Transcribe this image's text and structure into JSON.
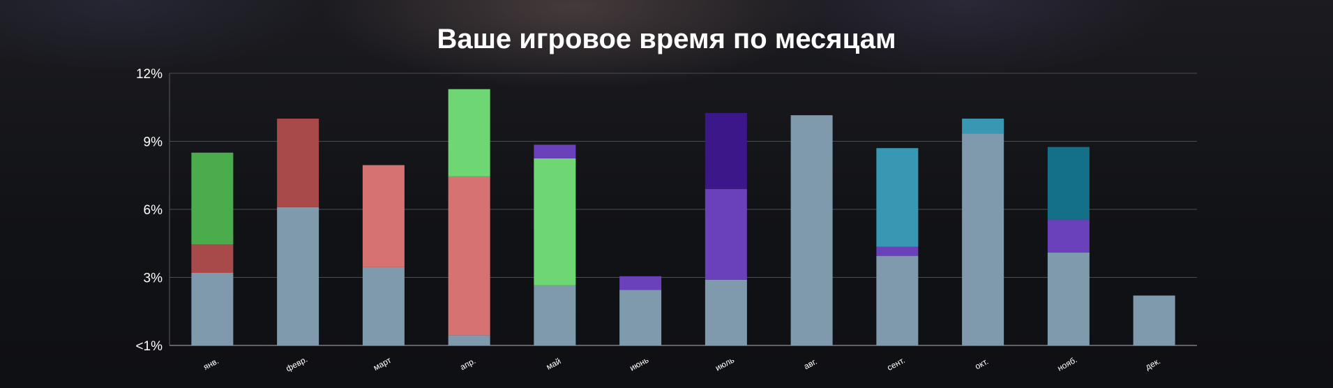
{
  "chart_data": {
    "type": "bar",
    "stacked": true,
    "title": "Ваше игровое время по месяцам",
    "xlabel": "",
    "ylabel": "",
    "ylim": [
      0,
      12
    ],
    "y_ticks": [
      {
        "value": 0,
        "label": "<1%"
      },
      {
        "value": 3,
        "label": "3%"
      },
      {
        "value": 6,
        "label": "6%"
      },
      {
        "value": 9,
        "label": "9%"
      },
      {
        "value": 12,
        "label": "12%"
      }
    ],
    "grid": true,
    "legend": "none",
    "categories": [
      "янв.",
      "февр.",
      "март",
      "апр.",
      "май",
      "июнь",
      "июль",
      "авг.",
      "сент.",
      "окт.",
      "нояб.",
      "дек."
    ],
    "segments": [
      [
        {
          "value": 3.2,
          "color": "#7f9aad"
        },
        {
          "value": 1.25,
          "color": "#a84a4a"
        },
        {
          "value": 4.05,
          "color": "#4aac4a"
        }
      ],
      [
        {
          "value": 6.1,
          "color": "#7f9aad"
        },
        {
          "value": 3.9,
          "color": "#a84a4a"
        }
      ],
      [
        {
          "value": 3.45,
          "color": "#7f9aad"
        },
        {
          "value": 4.5,
          "color": "#d77272"
        }
      ],
      [
        {
          "value": 0.45,
          "color": "#7f9aad"
        },
        {
          "value": 7.0,
          "color": "#d77272"
        },
        {
          "value": 3.85,
          "color": "#6fd674"
        }
      ],
      [
        {
          "value": 2.65,
          "color": "#7f9aad"
        },
        {
          "value": 5.6,
          "color": "#6fd674"
        },
        {
          "value": 0.6,
          "color": "#6a40bb"
        }
      ],
      [
        {
          "value": 2.45,
          "color": "#7f9aad"
        },
        {
          "value": 0.6,
          "color": "#6a40bb"
        }
      ],
      [
        {
          "value": 2.9,
          "color": "#7f9aad"
        },
        {
          "value": 4.0,
          "color": "#6a40bb"
        },
        {
          "value": 3.35,
          "color": "#3b1789"
        }
      ],
      [
        {
          "value": 10.15,
          "color": "#7f9aad"
        }
      ],
      [
        {
          "value": 3.95,
          "color": "#7f9aad"
        },
        {
          "value": 0.4,
          "color": "#6a40bb"
        },
        {
          "value": 4.35,
          "color": "#3897b2"
        }
      ],
      [
        {
          "value": 9.35,
          "color": "#7f9aad"
        },
        {
          "value": 0.65,
          "color": "#3897b2"
        }
      ],
      [
        {
          "value": 4.1,
          "color": "#7f9aad"
        },
        {
          "value": 1.45,
          "color": "#6a40bb"
        },
        {
          "value": 3.2,
          "color": "#146f88"
        }
      ],
      [
        {
          "value": 2.2,
          "color": "#7f9aad"
        }
      ]
    ]
  }
}
